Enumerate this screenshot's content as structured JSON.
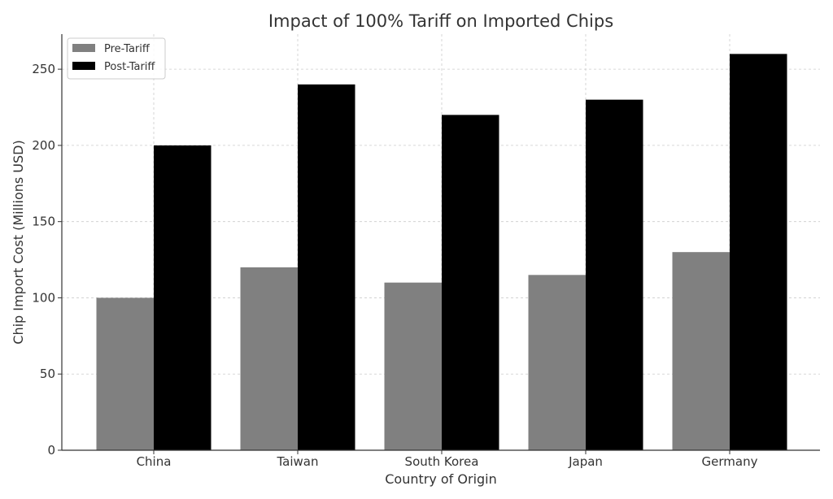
{
  "chart_data": {
    "type": "bar",
    "title": "Impact of 100% Tariff on Imported Chips",
    "xlabel": "Country of Origin",
    "ylabel": "Chip Import Cost (Millions USD)",
    "categories": [
      "China",
      "Taiwan",
      "South Korea",
      "Japan",
      "Germany"
    ],
    "series": [
      {
        "name": "Pre-Tariff",
        "values": [
          100,
          120,
          110,
          115,
          130
        ],
        "color": "#808080"
      },
      {
        "name": "Post-Tariff",
        "values": [
          200,
          240,
          220,
          230,
          260
        ],
        "color": "#000000"
      }
    ],
    "ylim": [
      0,
      273
    ],
    "yticks": [
      0,
      50,
      100,
      150,
      200,
      250
    ],
    "grid": true,
    "legend_position": "top-left"
  }
}
